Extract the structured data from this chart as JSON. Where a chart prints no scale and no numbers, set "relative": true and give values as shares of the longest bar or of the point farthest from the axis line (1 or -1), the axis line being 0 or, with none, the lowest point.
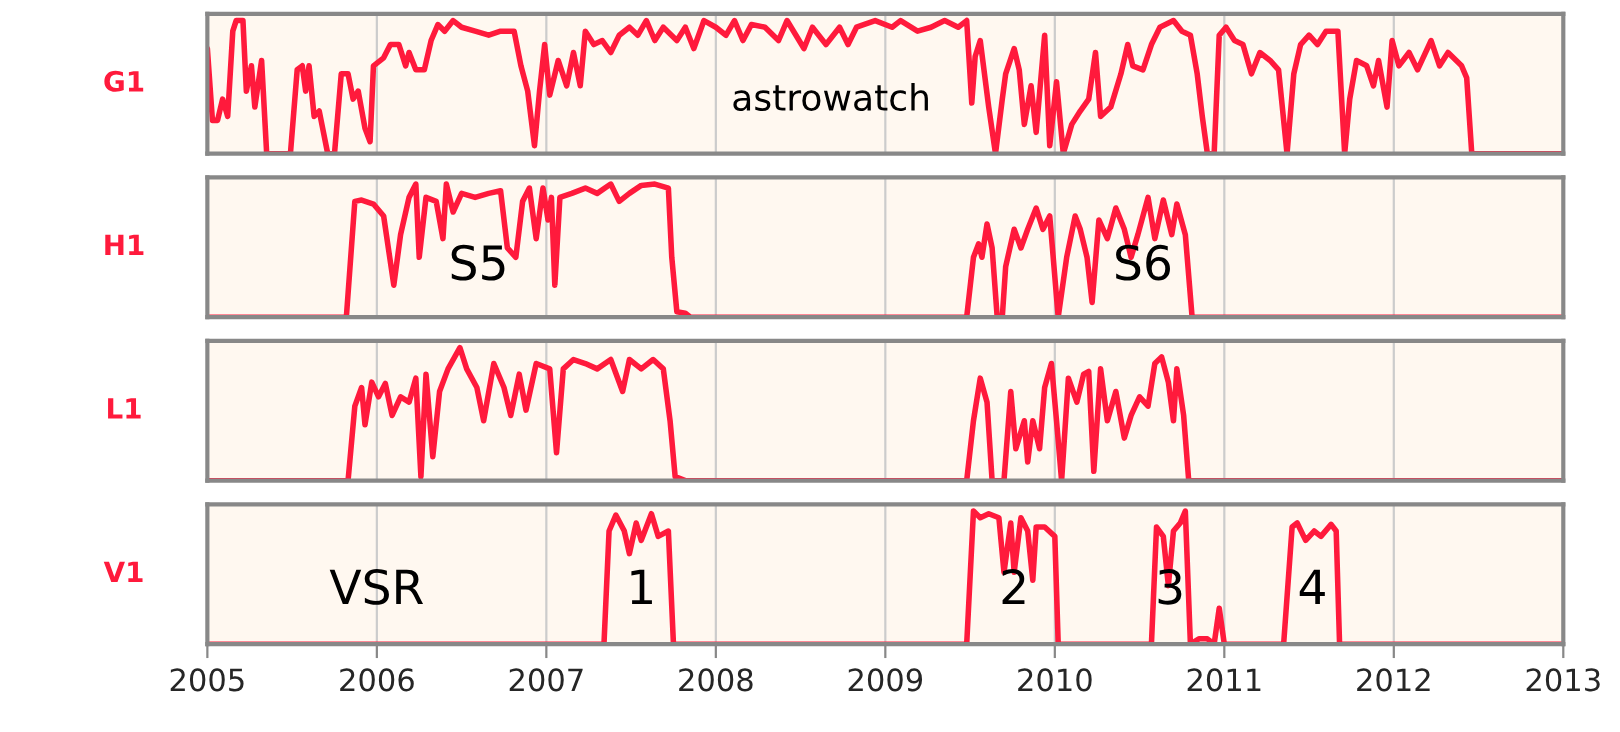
{
  "chart_data": [
    {
      "type": "line",
      "ylabel": "G1",
      "relative": true,
      "xlim": [
        2005,
        2013
      ],
      "xticks": [
        2005,
        2006,
        2007,
        2008,
        2009,
        2010,
        2011,
        2012,
        2013
      ],
      "grid": "x",
      "tick_labels": false,
      "annotations": [
        "astrowatch"
      ],
      "x": [
        2005.0,
        2005.03,
        2005.06,
        2005.09,
        2005.12,
        2005.15,
        2005.17,
        2005.21,
        2005.23,
        2005.26,
        2005.28,
        2005.32,
        2005.35,
        2005.49,
        2005.53,
        2005.56,
        2005.58,
        2005.6,
        2005.63,
        2005.66,
        2005.71,
        2005.75,
        2005.79,
        2005.83,
        2005.86,
        2005.89,
        2005.93,
        2005.96,
        2005.98,
        2006.04,
        2006.08,
        2006.13,
        2006.17,
        2006.19,
        2006.23,
        2006.28,
        2006.32,
        2006.36,
        2006.4,
        2006.45,
        2006.5,
        2006.58,
        2006.66,
        2006.73,
        2006.81,
        2006.85,
        2006.89,
        2006.93,
        2006.96,
        2006.99,
        2007.02,
        2007.07,
        2007.12,
        2007.16,
        2007.2,
        2007.23,
        2007.28,
        2007.33,
        2007.38,
        2007.43,
        2007.49,
        2007.54,
        2007.59,
        2007.64,
        2007.69,
        2007.77,
        2007.82,
        2007.87,
        2007.93,
        2008.0,
        2008.06,
        2008.11,
        2008.16,
        2008.21,
        2008.29,
        2008.37,
        2008.42,
        2008.52,
        2008.57,
        2008.65,
        2008.73,
        2008.78,
        2008.83,
        2008.94,
        2009.04,
        2009.09,
        2009.19,
        2009.27,
        2009.35,
        2009.43,
        2009.48,
        2009.51,
        2009.53,
        2009.56,
        2009.61,
        2009.65,
        2009.69,
        2009.71,
        2009.76,
        2009.79,
        2009.82,
        2009.86,
        2009.89,
        2009.94,
        2009.97,
        2010.01,
        2010.05,
        2010.1,
        2010.15,
        2010.2,
        2010.24,
        2010.27,
        2010.33,
        2010.39,
        2010.43,
        2010.46,
        2010.52,
        2010.57,
        2010.62,
        2010.7,
        2010.75,
        2010.8,
        2010.84,
        2010.87,
        2010.9,
        2010.94,
        2010.97,
        2011.01,
        2011.06,
        2011.11,
        2011.16,
        2011.21,
        2011.27,
        2011.32,
        2011.37,
        2011.41,
        2011.45,
        2011.5,
        2011.55,
        2011.6,
        2011.67,
        2011.71,
        2011.74,
        2011.78,
        2011.84,
        2011.88,
        2011.91,
        2011.96,
        2011.99,
        2012.03,
        2012.09,
        2012.14,
        2012.22,
        2012.27,
        2012.32,
        2012.4,
        2012.43,
        2012.46,
        2013.0
      ],
      "series": [
        {
          "color": "#ff1a3c",
          "values": [
            0.79,
            0.25,
            0.25,
            0.41,
            0.28,
            0.92,
            1.0,
            1.0,
            0.47,
            0.66,
            0.35,
            0.7,
            0,
            0,
            0.63,
            0.66,
            0.47,
            0.66,
            0.28,
            0.32,
            0,
            0,
            0.6,
            0.6,
            0.41,
            0.47,
            0.19,
            0.09,
            0.66,
            0.72,
            0.82,
            0.82,
            0.66,
            0.76,
            0.63,
            0.63,
            0.85,
            0.97,
            0.92,
            1.0,
            0.95,
            0.92,
            0.89,
            0.92,
            0.92,
            0.66,
            0.47,
            0.06,
            0.47,
            0.82,
            0.44,
            0.7,
            0.51,
            0.76,
            0.51,
            0.92,
            0.82,
            0.85,
            0.76,
            0.89,
            0.95,
            0.89,
            1.0,
            0.85,
            0.95,
            0.85,
            0.95,
            0.79,
            1.0,
            0.95,
            0.89,
            1.0,
            0.85,
            0.97,
            0.95,
            0.85,
            1.0,
            0.79,
            0.95,
            0.82,
            0.95,
            0.82,
            0.95,
            1.0,
            0.95,
            1.0,
            0.92,
            0.95,
            1.0,
            0.95,
            1.0,
            0.38,
            0.73,
            0.85,
            0.35,
            0,
            0.41,
            0.6,
            0.79,
            0.63,
            0.22,
            0.51,
            0.16,
            0.89,
            0.06,
            0.54,
            0,
            0.22,
            0.32,
            0.41,
            0.76,
            0.28,
            0.35,
            0.6,
            0.82,
            0.66,
            0.63,
            0.82,
            0.95,
            1.0,
            0.92,
            0.89,
            0.6,
            0.28,
            0,
            0,
            0.89,
            0.95,
            0.85,
            0.82,
            0.6,
            0.76,
            0.7,
            0.63,
            0,
            0.6,
            0.82,
            0.89,
            0.82,
            0.92,
            0.92,
            0,
            0.41,
            0.7,
            0.66,
            0.51,
            0.7,
            0.35,
            0.85,
            0.66,
            0.76,
            0.63,
            0.85,
            0.66,
            0.76,
            0.66,
            0.57,
            0,
            0
          ]
        }
      ]
    },
    {
      "type": "line",
      "ylabel": "H1",
      "relative": true,
      "xlim": [
        2005,
        2013
      ],
      "xticks": [
        2005,
        2006,
        2007,
        2008,
        2009,
        2010,
        2011,
        2012,
        2013
      ],
      "grid": "x",
      "tick_labels": false,
      "annotations": [
        "S5",
        "S6"
      ],
      "x": [
        2005.0,
        2005.82,
        2005.87,
        2005.91,
        2005.98,
        2006.04,
        2006.1,
        2006.14,
        2006.19,
        2006.23,
        2006.25,
        2006.29,
        2006.35,
        2006.39,
        2006.41,
        2006.45,
        2006.5,
        2006.58,
        2006.66,
        2006.73,
        2006.77,
        2006.82,
        2006.86,
        2006.9,
        2006.94,
        2006.98,
        2007.01,
        2007.03,
        2007.05,
        2007.08,
        2007.15,
        2007.23,
        2007.3,
        2007.38,
        2007.43,
        2007.49,
        2007.56,
        2007.64,
        2007.72,
        2007.74,
        2007.77,
        2007.82,
        2007.85,
        2009.48,
        2009.52,
        2009.55,
        2009.57,
        2009.6,
        2009.63,
        2009.66,
        2009.69,
        2009.71,
        2009.76,
        2009.8,
        2009.84,
        2009.89,
        2009.93,
        2009.97,
        2010.02,
        2010.07,
        2010.12,
        2010.15,
        2010.19,
        2010.22,
        2010.26,
        2010.31,
        2010.36,
        2010.41,
        2010.45,
        2010.49,
        2010.55,
        2010.59,
        2010.64,
        2010.69,
        2010.72,
        2010.77,
        2010.81,
        2013.0
      ],
      "series": [
        {
          "color": "#ff1a3c",
          "values": [
            0,
            0,
            0.87,
            0.88,
            0.85,
            0.76,
            0.24,
            0.62,
            0.9,
            1.0,
            0.45,
            0.9,
            0.87,
            0.59,
            1.0,
            0.79,
            0.93,
            0.9,
            0.93,
            0.95,
            0.52,
            0.45,
            0.87,
            0.97,
            0.59,
            0.97,
            0.73,
            0.9,
            0.24,
            0.9,
            0.93,
            0.97,
            0.93,
            1.0,
            0.87,
            0.93,
            0.99,
            1.0,
            0.97,
            0.45,
            0.04,
            0.03,
            0,
            0,
            0.45,
            0.55,
            0.45,
            0.7,
            0.52,
            0,
            0,
            0.38,
            0.66,
            0.52,
            0.66,
            0.82,
            0.66,
            0.76,
            0,
            0.45,
            0.76,
            0.66,
            0.45,
            0.11,
            0.73,
            0.59,
            0.82,
            0.66,
            0.45,
            0.62,
            0.9,
            0.59,
            0.88,
            0.62,
            0.85,
            0.62,
            0,
            0
          ]
        }
      ]
    },
    {
      "type": "line",
      "ylabel": "L1",
      "relative": true,
      "xlim": [
        2005,
        2013
      ],
      "xticks": [
        2005,
        2006,
        2007,
        2008,
        2009,
        2010,
        2011,
        2012,
        2013
      ],
      "grid": "x",
      "tick_labels": false,
      "x": [
        2005.0,
        2005.83,
        2005.87,
        2005.91,
        2005.93,
        2005.97,
        2006.01,
        2006.05,
        2006.09,
        2006.14,
        2006.19,
        2006.23,
        2006.26,
        2006.29,
        2006.33,
        2006.37,
        2006.42,
        2006.49,
        2006.53,
        2006.59,
        2006.63,
        2006.69,
        2006.75,
        2006.79,
        2006.84,
        2006.88,
        2006.94,
        2007.02,
        2007.06,
        2007.1,
        2007.16,
        2007.23,
        2007.3,
        2007.38,
        2007.45,
        2007.49,
        2007.56,
        2007.63,
        2007.69,
        2007.73,
        2007.76,
        2007.82,
        2009.48,
        2009.52,
        2009.56,
        2009.6,
        2009.63,
        2009.7,
        2009.74,
        2009.77,
        2009.82,
        2009.84,
        2009.87,
        2009.91,
        2009.94,
        2009.98,
        2010.01,
        2010.04,
        2010.08,
        2010.13,
        2010.17,
        2010.2,
        2010.23,
        2010.27,
        2010.31,
        2010.36,
        2010.41,
        2010.45,
        2010.5,
        2010.55,
        2010.59,
        2010.63,
        2010.67,
        2010.7,
        2010.72,
        2010.76,
        2010.79,
        2013.0
      ],
      "series": [
        {
          "color": "#ff1a3c",
          "values": [
            0,
            0,
            0.56,
            0.7,
            0.42,
            0.74,
            0.63,
            0.73,
            0.49,
            0.63,
            0.59,
            0.77,
            0.03,
            0.8,
            0.18,
            0.67,
            0.84,
            1.0,
            0.84,
            0.7,
            0.45,
            0.88,
            0.7,
            0.49,
            0.8,
            0.53,
            0.88,
            0.84,
            0.21,
            0.84,
            0.91,
            0.88,
            0.84,
            0.91,
            0.67,
            0.91,
            0.84,
            0.91,
            0.84,
            0.45,
            0.03,
            0,
            0,
            0.45,
            0.77,
            0.59,
            0,
            0,
            0.67,
            0.24,
            0.45,
            0.14,
            0.45,
            0.24,
            0.7,
            0.88,
            0.45,
            0,
            0.77,
            0.59,
            0.8,
            0.82,
            0.07,
            0.84,
            0.45,
            0.67,
            0.32,
            0.49,
            0.63,
            0.56,
            0.88,
            0.93,
            0.74,
            0.45,
            0.84,
            0.49,
            0,
            0
          ]
        }
      ]
    },
    {
      "type": "line",
      "ylabel": "V1",
      "relative": true,
      "xlim": [
        2005,
        2013
      ],
      "xticks": [
        2005,
        2006,
        2007,
        2008,
        2009,
        2010,
        2011,
        2012,
        2013
      ],
      "grid": "x",
      "tick_labels": "x",
      "annotations": [
        "VSR",
        "1",
        "2",
        "3",
        "4"
      ],
      "x": [
        2005.0,
        2007.34,
        2007.37,
        2007.41,
        2007.46,
        2007.49,
        2007.53,
        2007.56,
        2007.62,
        2007.66,
        2007.72,
        2007.75,
        2009.48,
        2009.52,
        2009.56,
        2009.61,
        2009.67,
        2009.7,
        2009.74,
        2009.76,
        2009.8,
        2009.84,
        2009.87,
        2009.89,
        2009.94,
        2010.0,
        2010.02,
        2010.57,
        2010.6,
        2010.64,
        2010.67,
        2010.7,
        2010.74,
        2010.77,
        2010.8,
        2010.85,
        2010.9,
        2010.94,
        2010.97,
        2011.0,
        2011.35,
        2011.4,
        2011.43,
        2011.48,
        2011.53,
        2011.57,
        2011.63,
        2011.66,
        2011.68,
        2013.0
      ],
      "series": [
        {
          "color": "#ff1a3c",
          "values": [
            0,
            0,
            0.85,
            0.97,
            0.85,
            0.68,
            0.91,
            0.78,
            0.98,
            0.81,
            0.85,
            0,
            0,
            1.0,
            0.95,
            0.98,
            0.95,
            0.54,
            0.91,
            0.54,
            0.95,
            0.85,
            0.48,
            0.88,
            0.88,
            0.81,
            0,
            0,
            0.88,
            0.81,
            0.44,
            0.85,
            0.91,
            1.0,
            0,
            0.04,
            0.04,
            0,
            0.27,
            0,
            0,
            0.88,
            0.91,
            0.78,
            0.85,
            0.81,
            0.9,
            0.85,
            0,
            0
          ]
        }
      ]
    }
  ]
}
